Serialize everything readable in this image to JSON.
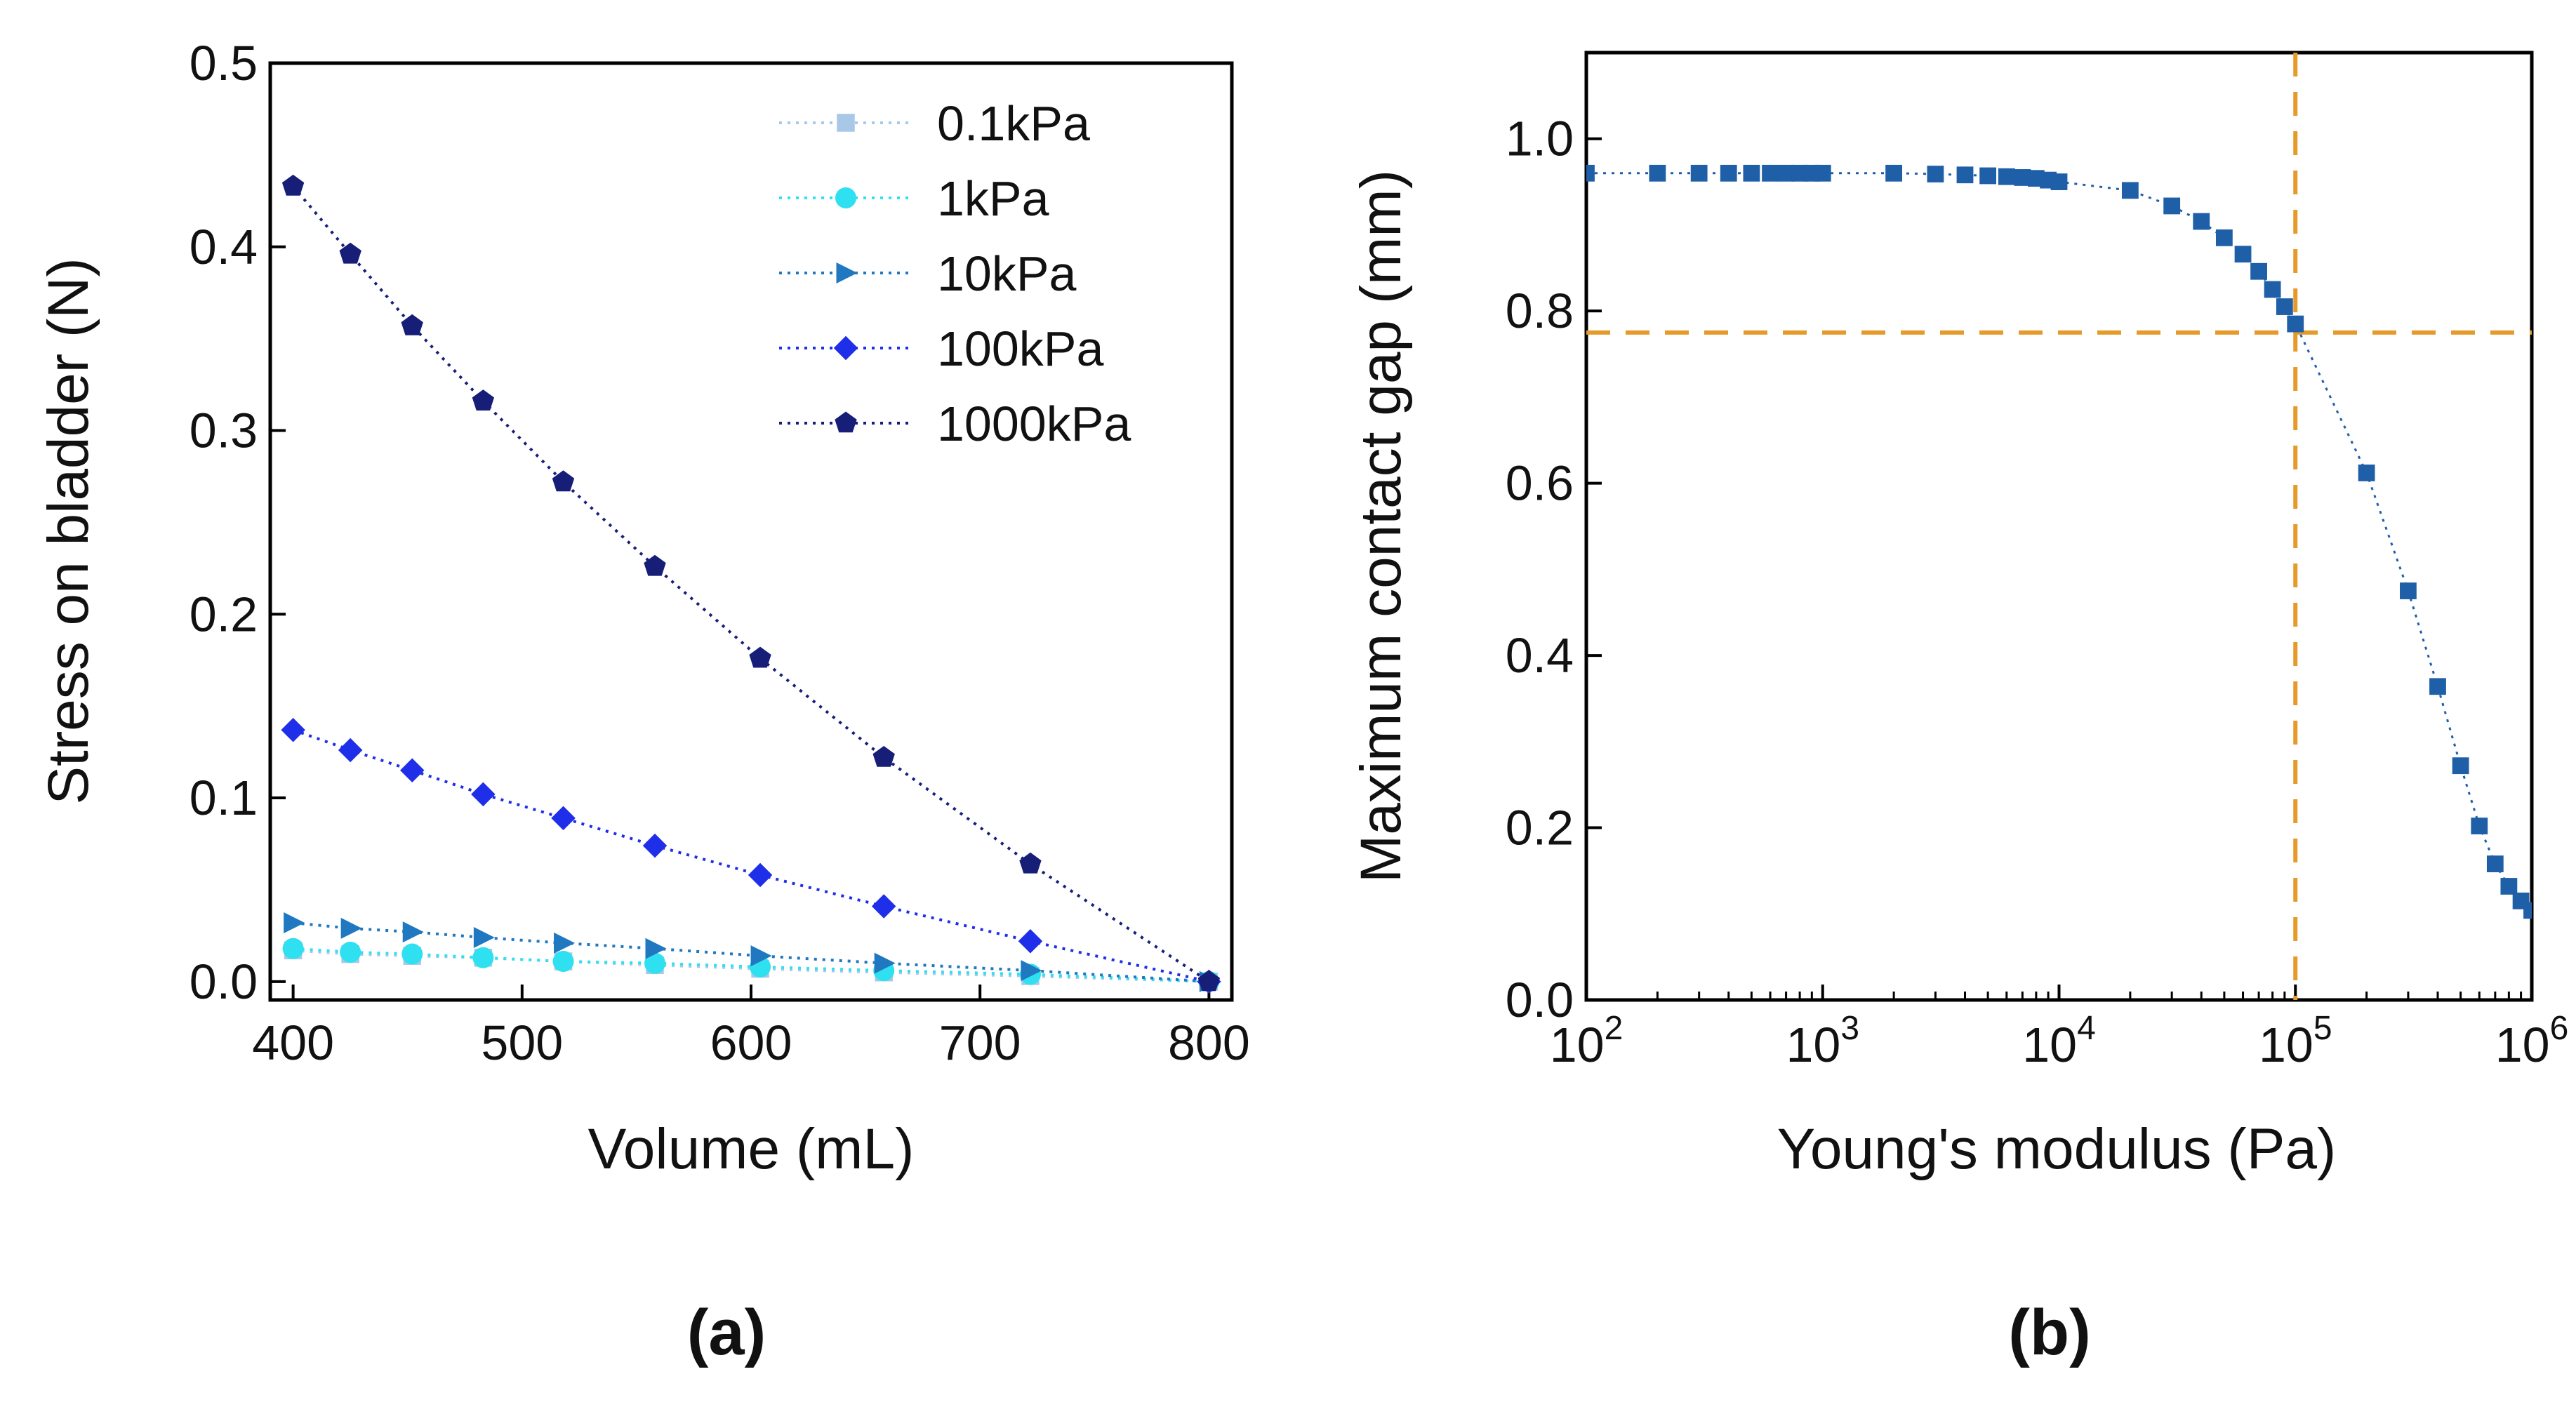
{
  "chart_data": [
    {
      "type": "line",
      "panel_label": "(a)",
      "xlabel": "Volume (mL)",
      "ylabel": "Stress on bladder (N)",
      "xlim": [
        390,
        810
      ],
      "ylim": [
        -0.01,
        0.5
      ],
      "xticks": [
        400,
        500,
        600,
        700,
        800
      ],
      "xtick_labels": [
        "400",
        "500",
        "600",
        "700",
        "800"
      ],
      "yticks": [
        0.0,
        0.1,
        0.2,
        0.3,
        0.4,
        0.5
      ],
      "ytick_labels": [
        "0.0",
        "0.1",
        "0.2",
        "0.3",
        "0.4",
        "0.5"
      ],
      "legend_position": "top-right",
      "x": [
        400,
        425,
        452,
        483,
        518,
        558,
        604,
        658,
        722,
        800
      ],
      "series": [
        {
          "name": "0.1kPa",
          "marker": "square",
          "color": "#a8c8e8",
          "values": [
            0.017,
            0.015,
            0.014,
            0.013,
            0.011,
            0.009,
            0.007,
            0.005,
            0.003,
            0.0
          ]
        },
        {
          "name": "1kPa",
          "marker": "circle",
          "color": "#2fe0f0",
          "values": [
            0.018,
            0.016,
            0.015,
            0.013,
            0.011,
            0.01,
            0.008,
            0.006,
            0.004,
            0.0
          ]
        },
        {
          "name": "10kPa",
          "marker": "triangle-right",
          "color": "#1f78c0",
          "values": [
            0.032,
            0.029,
            0.027,
            0.024,
            0.021,
            0.018,
            0.014,
            0.01,
            0.006,
            0.0
          ]
        },
        {
          "name": "100kPa",
          "marker": "diamond",
          "color": "#1f2ee8",
          "values": [
            0.137,
            0.126,
            0.115,
            0.102,
            0.089,
            0.074,
            0.058,
            0.041,
            0.022,
            0.0
          ]
        },
        {
          "name": "1000kPa",
          "marker": "pentagon",
          "color": "#161e78",
          "values": [
            0.433,
            0.396,
            0.357,
            0.316,
            0.272,
            0.226,
            0.176,
            0.122,
            0.064,
            0.0
          ]
        }
      ]
    },
    {
      "type": "scatter",
      "panel_label": "(b)",
      "xlabel": "Young's modulus (Pa)",
      "ylabel": "Maximum contact gap (mm)",
      "xscale": "log",
      "xlim": [
        100,
        1000000
      ],
      "ylim": [
        0.0,
        1.1
      ],
      "xtick_exponents": [
        2,
        3,
        4,
        5,
        6
      ],
      "xtick_base": "10",
      "yticks": [
        0.0,
        0.2,
        0.4,
        0.6,
        0.8,
        1.0
      ],
      "ytick_labels": [
        "0.0",
        "0.2",
        "0.4",
        "0.6",
        "0.8",
        "1.0"
      ],
      "marker": "square",
      "color": "#1f5fa8",
      "reference_lines": {
        "color": "#e59a2a",
        "x": 100000,
        "y": 0.775
      },
      "series": [
        {
          "name": "Maximum contact gap",
          "x": [
            100,
            200,
            300,
            400,
            500,
            600,
            700,
            800,
            900,
            1000,
            2000,
            3000,
            4000,
            5000,
            6000,
            7000,
            8000,
            9000,
            10000,
            20000,
            30000,
            40000,
            50000,
            60000,
            70000,
            80000,
            90000,
            100000,
            200000,
            300000,
            400000,
            500000,
            600000,
            700000,
            800000,
            900000,
            1000000
          ],
          "values": [
            0.96,
            0.96,
            0.96,
            0.96,
            0.96,
            0.96,
            0.96,
            0.96,
            0.96,
            0.96,
            0.96,
            0.959,
            0.958,
            0.957,
            0.956,
            0.955,
            0.954,
            0.952,
            0.95,
            0.94,
            0.922,
            0.904,
            0.885,
            0.866,
            0.846,
            0.825,
            0.805,
            0.785,
            0.612,
            0.475,
            0.364,
            0.272,
            0.202,
            0.158,
            0.132,
            0.115,
            0.104
          ]
        }
      ]
    }
  ]
}
